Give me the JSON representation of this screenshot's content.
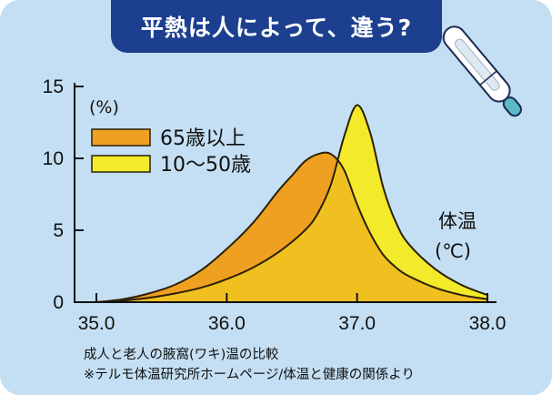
{
  "title": "平熱は人によって、違う?",
  "colors": {
    "background": "#c4dff3",
    "banner": "#1c3f8f",
    "series_65": "#f0a020",
    "series_10_50": "#f2ea2a",
    "series_10_50_hidden": "#f0c020"
  },
  "chart_data": {
    "type": "area",
    "x_axis": {
      "ticks": [
        "35.0",
        "36.0",
        "37.0",
        "38.0"
      ],
      "range": [
        35.0,
        38.0
      ]
    },
    "y_axis": {
      "ticks": [
        "0",
        "5",
        "10",
        "15"
      ],
      "range": [
        0,
        15
      ],
      "unit_label": "(%)"
    },
    "axis_title": {
      "line1": "体温",
      "line2": "(℃)"
    },
    "legend_position": "top-left",
    "grid": false,
    "series": [
      {
        "name": "10〜50歳",
        "color_key": "series_10_50",
        "points": [
          [
            35.0,
            0.0
          ],
          [
            35.2,
            0.1
          ],
          [
            35.4,
            0.3
          ],
          [
            35.6,
            0.6
          ],
          [
            35.8,
            1.0
          ],
          [
            36.0,
            1.6
          ],
          [
            36.2,
            2.4
          ],
          [
            36.4,
            3.5
          ],
          [
            36.6,
            5.0
          ],
          [
            36.7,
            6.2
          ],
          [
            36.8,
            8.2
          ],
          [
            36.9,
            11.5
          ],
          [
            37.0,
            13.7
          ],
          [
            37.1,
            11.8
          ],
          [
            37.2,
            8.0
          ],
          [
            37.3,
            5.5
          ],
          [
            37.4,
            4.0
          ],
          [
            37.6,
            2.3
          ],
          [
            37.8,
            1.2
          ],
          [
            38.0,
            0.5
          ]
        ]
      },
      {
        "name": "65歳以上",
        "color_key": "series_65",
        "points": [
          [
            35.0,
            0.0
          ],
          [
            35.2,
            0.2
          ],
          [
            35.4,
            0.6
          ],
          [
            35.6,
            1.2
          ],
          [
            35.8,
            2.2
          ],
          [
            36.0,
            3.7
          ],
          [
            36.2,
            5.5
          ],
          [
            36.4,
            7.8
          ],
          [
            36.5,
            8.8
          ],
          [
            36.6,
            9.8
          ],
          [
            36.7,
            10.3
          ],
          [
            36.8,
            10.3
          ],
          [
            36.9,
            9.2
          ],
          [
            37.0,
            6.8
          ],
          [
            37.1,
            4.8
          ],
          [
            37.2,
            3.3
          ],
          [
            37.3,
            2.4
          ],
          [
            37.4,
            1.8
          ],
          [
            37.6,
            1.0
          ],
          [
            37.8,
            0.5
          ],
          [
            38.0,
            0.2
          ]
        ]
      }
    ]
  },
  "footer": {
    "line1": "成人と老人の腋窩(ワキ)温の比較",
    "line2": "※テルモ体温研究所ホームページ/体温と健康の関係より"
  },
  "icon": "thermometer-icon"
}
